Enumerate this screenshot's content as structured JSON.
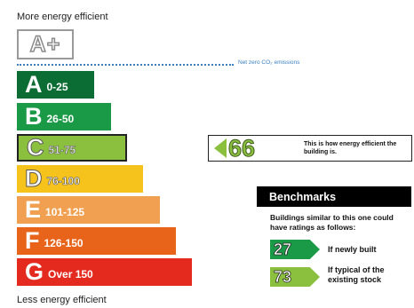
{
  "labels": {
    "more_efficient": "More energy efficient",
    "less_efficient": "Less energy efficient",
    "aplus": "A+",
    "net_zero": "Net zero CO₂ emissions"
  },
  "bands": [
    {
      "letter": "A",
      "range": "0-25",
      "color": "#0b6d33"
    },
    {
      "letter": "B",
      "range": "26-50",
      "color": "#1a9a46"
    },
    {
      "letter": "C",
      "range": "51-75",
      "color": "#8bc03f"
    },
    {
      "letter": "D",
      "range": "76-100",
      "color": "#f5c31c"
    },
    {
      "letter": "E",
      "range": "101-125",
      "color": "#f0a050"
    },
    {
      "letter": "F",
      "range": "126-150",
      "color": "#e9641b"
    },
    {
      "letter": "G",
      "range": "Over 150",
      "color": "#e42a1f"
    }
  ],
  "current_rating": {
    "value": "66",
    "band": "C",
    "text": "This is how energy efficient the building is."
  },
  "benchmarks": {
    "title": "Benchmarks",
    "description": "Buildings similar to this one could have ratings as follows:",
    "items": [
      {
        "value": "27",
        "label": "If newly built",
        "color": "#1a9a46"
      },
      {
        "value": "73",
        "label": "If typical of the existing stock",
        "color": "#8bc03f"
      }
    ]
  }
}
